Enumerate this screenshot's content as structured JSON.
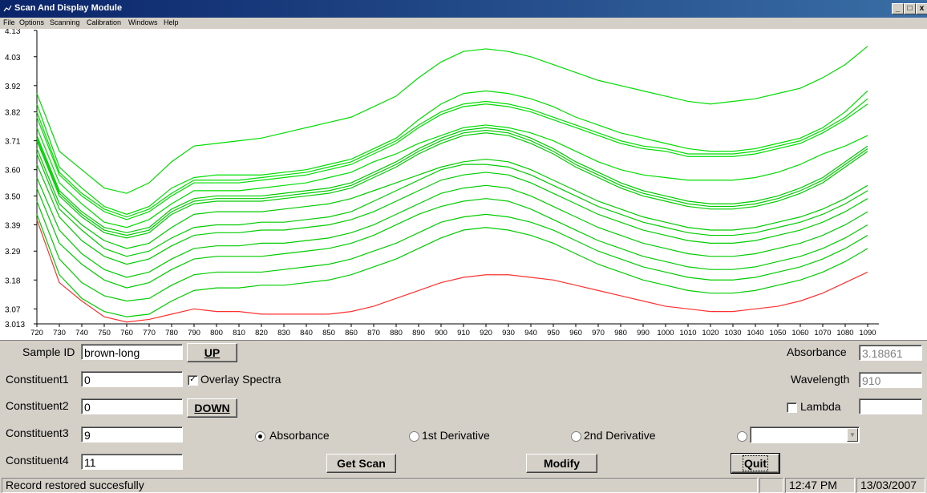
{
  "window": {
    "title": "Scan And Display Module",
    "controls": [
      "_",
      "□",
      "x"
    ]
  },
  "menu": [
    "File",
    "Options",
    "Scanning",
    "Calibration",
    "Windows",
    "Help"
  ],
  "chart_data": {
    "type": "line",
    "title": "",
    "xlabel": "",
    "ylabel": "",
    "x_ticks": [
      720,
      730,
      740,
      750,
      760,
      770,
      780,
      790,
      800,
      810,
      820,
      830,
      840,
      850,
      860,
      870,
      880,
      890,
      900,
      910,
      920,
      930,
      940,
      950,
      960,
      970,
      980,
      990,
      1000,
      1010,
      1020,
      1030,
      1040,
      1050,
      1060,
      1070,
      1080,
      1090
    ],
    "y_ticks": [
      "4.13",
      "4.03",
      "3.92",
      "3.82",
      "3.71",
      "3.60",
      "3.50",
      "3.39",
      "3.29",
      "3.18",
      "3.07",
      "3.013"
    ],
    "xlim": [
      720,
      1095
    ],
    "ylim": [
      3.013,
      4.13
    ],
    "x": [
      720,
      730,
      740,
      750,
      760,
      770,
      780,
      790,
      800,
      810,
      820,
      830,
      840,
      850,
      860,
      870,
      880,
      890,
      900,
      910,
      920,
      930,
      940,
      950,
      960,
      970,
      980,
      990,
      1000,
      1010,
      1020,
      1030,
      1040,
      1050,
      1060,
      1070,
      1080,
      1090
    ],
    "series": [
      {
        "color": "#00dd00",
        "values": [
          3.89,
          3.67,
          3.6,
          3.53,
          3.51,
          3.55,
          3.63,
          3.69,
          3.7,
          3.71,
          3.72,
          3.74,
          3.76,
          3.78,
          3.8,
          3.84,
          3.88,
          3.95,
          4.01,
          4.05,
          4.06,
          4.05,
          4.03,
          4.0,
          3.97,
          3.94,
          3.92,
          3.9,
          3.88,
          3.86,
          3.85,
          3.86,
          3.87,
          3.89,
          3.91,
          3.95,
          4.0,
          4.07
        ]
      },
      {
        "color": "#00dd00",
        "values": [
          3.85,
          3.61,
          3.53,
          3.46,
          3.43,
          3.46,
          3.53,
          3.57,
          3.58,
          3.58,
          3.58,
          3.59,
          3.6,
          3.62,
          3.64,
          3.68,
          3.72,
          3.79,
          3.85,
          3.89,
          3.9,
          3.89,
          3.87,
          3.84,
          3.8,
          3.77,
          3.74,
          3.72,
          3.7,
          3.68,
          3.67,
          3.67,
          3.68,
          3.7,
          3.72,
          3.76,
          3.82,
          3.9
        ]
      },
      {
        "color": "#00dd00",
        "values": [
          3.82,
          3.59,
          3.51,
          3.45,
          3.42,
          3.45,
          3.51,
          3.56,
          3.56,
          3.56,
          3.57,
          3.58,
          3.59,
          3.61,
          3.63,
          3.67,
          3.71,
          3.77,
          3.82,
          3.85,
          3.86,
          3.85,
          3.83,
          3.8,
          3.77,
          3.74,
          3.71,
          3.69,
          3.68,
          3.66,
          3.66,
          3.66,
          3.67,
          3.69,
          3.71,
          3.75,
          3.8,
          3.87
        ]
      },
      {
        "color": "#00dd00",
        "values": [
          3.8,
          3.58,
          3.5,
          3.44,
          3.41,
          3.44,
          3.5,
          3.55,
          3.55,
          3.55,
          3.56,
          3.57,
          3.58,
          3.6,
          3.62,
          3.66,
          3.7,
          3.76,
          3.81,
          3.84,
          3.85,
          3.84,
          3.82,
          3.79,
          3.76,
          3.73,
          3.7,
          3.68,
          3.67,
          3.65,
          3.65,
          3.65,
          3.66,
          3.68,
          3.7,
          3.74,
          3.79,
          3.85
        ]
      },
      {
        "color": "#00dd00",
        "values": [
          3.76,
          3.55,
          3.47,
          3.4,
          3.38,
          3.41,
          3.47,
          3.52,
          3.52,
          3.52,
          3.53,
          3.54,
          3.55,
          3.57,
          3.59,
          3.63,
          3.66,
          3.7,
          3.73,
          3.76,
          3.77,
          3.76,
          3.74,
          3.71,
          3.67,
          3.63,
          3.6,
          3.58,
          3.57,
          3.56,
          3.56,
          3.56,
          3.57,
          3.59,
          3.62,
          3.66,
          3.69,
          3.73
        ]
      },
      {
        "color": "#00cc00",
        "values": [
          3.73,
          3.52,
          3.44,
          3.38,
          3.36,
          3.38,
          3.45,
          3.49,
          3.5,
          3.5,
          3.5,
          3.51,
          3.52,
          3.53,
          3.55,
          3.59,
          3.63,
          3.68,
          3.72,
          3.75,
          3.76,
          3.75,
          3.72,
          3.68,
          3.63,
          3.59,
          3.55,
          3.52,
          3.5,
          3.48,
          3.47,
          3.47,
          3.48,
          3.5,
          3.53,
          3.57,
          3.63,
          3.69
        ]
      },
      {
        "color": "#00cc00",
        "values": [
          3.72,
          3.51,
          3.43,
          3.37,
          3.35,
          3.37,
          3.44,
          3.48,
          3.49,
          3.49,
          3.49,
          3.5,
          3.51,
          3.52,
          3.54,
          3.58,
          3.62,
          3.67,
          3.71,
          3.74,
          3.75,
          3.74,
          3.71,
          3.67,
          3.62,
          3.58,
          3.54,
          3.51,
          3.49,
          3.47,
          3.46,
          3.46,
          3.47,
          3.49,
          3.52,
          3.56,
          3.62,
          3.68
        ]
      },
      {
        "color": "#00cc00",
        "values": [
          3.71,
          3.5,
          3.42,
          3.36,
          3.34,
          3.36,
          3.43,
          3.47,
          3.48,
          3.48,
          3.48,
          3.49,
          3.5,
          3.51,
          3.53,
          3.57,
          3.61,
          3.66,
          3.7,
          3.73,
          3.74,
          3.73,
          3.7,
          3.66,
          3.61,
          3.57,
          3.53,
          3.5,
          3.48,
          3.46,
          3.45,
          3.45,
          3.46,
          3.48,
          3.51,
          3.55,
          3.61,
          3.67
        ]
      },
      {
        "color": "#00cc00",
        "values": [
          3.68,
          3.47,
          3.39,
          3.33,
          3.3,
          3.32,
          3.38,
          3.43,
          3.44,
          3.44,
          3.44,
          3.45,
          3.46,
          3.47,
          3.49,
          3.52,
          3.55,
          3.58,
          3.61,
          3.63,
          3.64,
          3.63,
          3.6,
          3.56,
          3.52,
          3.48,
          3.45,
          3.42,
          3.4,
          3.38,
          3.37,
          3.37,
          3.38,
          3.4,
          3.42,
          3.45,
          3.49,
          3.54
        ]
      },
      {
        "color": "#00cc00",
        "values": [
          3.66,
          3.45,
          3.37,
          3.3,
          3.27,
          3.29,
          3.34,
          3.38,
          3.39,
          3.39,
          3.4,
          3.4,
          3.41,
          3.42,
          3.44,
          3.48,
          3.52,
          3.56,
          3.6,
          3.62,
          3.62,
          3.61,
          3.58,
          3.54,
          3.5,
          3.46,
          3.43,
          3.4,
          3.38,
          3.36,
          3.35,
          3.35,
          3.36,
          3.38,
          3.4,
          3.43,
          3.47,
          3.52
        ]
      },
      {
        "color": "#00cc00",
        "values": [
          3.62,
          3.42,
          3.33,
          3.27,
          3.24,
          3.26,
          3.31,
          3.35,
          3.36,
          3.36,
          3.37,
          3.37,
          3.38,
          3.39,
          3.41,
          3.44,
          3.48,
          3.52,
          3.56,
          3.58,
          3.59,
          3.58,
          3.55,
          3.51,
          3.47,
          3.43,
          3.4,
          3.37,
          3.35,
          3.33,
          3.32,
          3.32,
          3.33,
          3.35,
          3.37,
          3.4,
          3.44,
          3.49
        ]
      },
      {
        "color": "#00cc00",
        "values": [
          3.57,
          3.37,
          3.28,
          3.22,
          3.19,
          3.21,
          3.26,
          3.3,
          3.31,
          3.31,
          3.32,
          3.32,
          3.33,
          3.34,
          3.36,
          3.39,
          3.43,
          3.47,
          3.51,
          3.53,
          3.54,
          3.53,
          3.5,
          3.46,
          3.42,
          3.38,
          3.35,
          3.32,
          3.3,
          3.28,
          3.27,
          3.27,
          3.28,
          3.3,
          3.32,
          3.35,
          3.39,
          3.44
        ]
      },
      {
        "color": "#00cc00",
        "values": [
          3.53,
          3.32,
          3.24,
          3.18,
          3.15,
          3.17,
          3.22,
          3.26,
          3.27,
          3.27,
          3.27,
          3.28,
          3.29,
          3.3,
          3.32,
          3.35,
          3.39,
          3.43,
          3.46,
          3.48,
          3.49,
          3.48,
          3.45,
          3.41,
          3.37,
          3.33,
          3.3,
          3.27,
          3.25,
          3.23,
          3.22,
          3.22,
          3.23,
          3.25,
          3.27,
          3.3,
          3.34,
          3.39
        ]
      },
      {
        "color": "#00cc00",
        "values": [
          3.48,
          3.26,
          3.17,
          3.12,
          3.1,
          3.11,
          3.16,
          3.2,
          3.21,
          3.21,
          3.21,
          3.22,
          3.23,
          3.24,
          3.26,
          3.29,
          3.32,
          3.36,
          3.4,
          3.42,
          3.43,
          3.42,
          3.4,
          3.37,
          3.33,
          3.29,
          3.26,
          3.23,
          3.21,
          3.19,
          3.18,
          3.18,
          3.19,
          3.21,
          3.23,
          3.26,
          3.3,
          3.35
        ]
      },
      {
        "color": "#00cc00",
        "values": [
          3.43,
          3.2,
          3.11,
          3.06,
          3.04,
          3.05,
          3.1,
          3.14,
          3.15,
          3.15,
          3.16,
          3.16,
          3.17,
          3.18,
          3.2,
          3.23,
          3.26,
          3.3,
          3.34,
          3.37,
          3.38,
          3.37,
          3.35,
          3.32,
          3.28,
          3.24,
          3.21,
          3.18,
          3.16,
          3.14,
          3.13,
          3.13,
          3.14,
          3.16,
          3.18,
          3.21,
          3.25,
          3.3
        ]
      },
      {
        "color": "#ff3030",
        "values": [
          3.41,
          3.17,
          3.1,
          3.04,
          3.02,
          3.03,
          3.05,
          3.07,
          3.06,
          3.06,
          3.05,
          3.05,
          3.05,
          3.05,
          3.06,
          3.08,
          3.11,
          3.14,
          3.17,
          3.19,
          3.2,
          3.2,
          3.19,
          3.18,
          3.16,
          3.14,
          3.12,
          3.1,
          3.08,
          3.07,
          3.06,
          3.06,
          3.07,
          3.08,
          3.1,
          3.13,
          3.17,
          3.21
        ]
      }
    ]
  },
  "form": {
    "sample_id_label": "Sample ID",
    "sample_id_value": "brown-long",
    "up_label": "UP",
    "down_label": "DOWN",
    "overlay_label": "Overlay Spectra",
    "overlay_checked": true,
    "constituents": [
      {
        "label": "Constituent1",
        "value": "0"
      },
      {
        "label": "Constituent2",
        "value": "0"
      },
      {
        "label": "Constituent3",
        "value": "9"
      },
      {
        "label": "Constituent4",
        "value": "11"
      }
    ],
    "absorbance_label": "Absorbance",
    "absorbance_value": "3.18861",
    "wavelength_label": "Wavelength",
    "wavelength_value": "910",
    "lambda_label": "Lambda",
    "lambda_value": "",
    "radio_absorbance": "Absorbance",
    "radio_first": "1st Derivative",
    "radio_second": "2nd Derivative",
    "selected_mode": "Absorbance",
    "combo_value": "",
    "get_scan_label": "Get Scan",
    "modify_label": "Modify",
    "quit_label": "Quit"
  },
  "status": {
    "message": "Record restored succesfully",
    "panel_empty": "",
    "time": "12:47 PM",
    "date": "13/03/2007"
  }
}
